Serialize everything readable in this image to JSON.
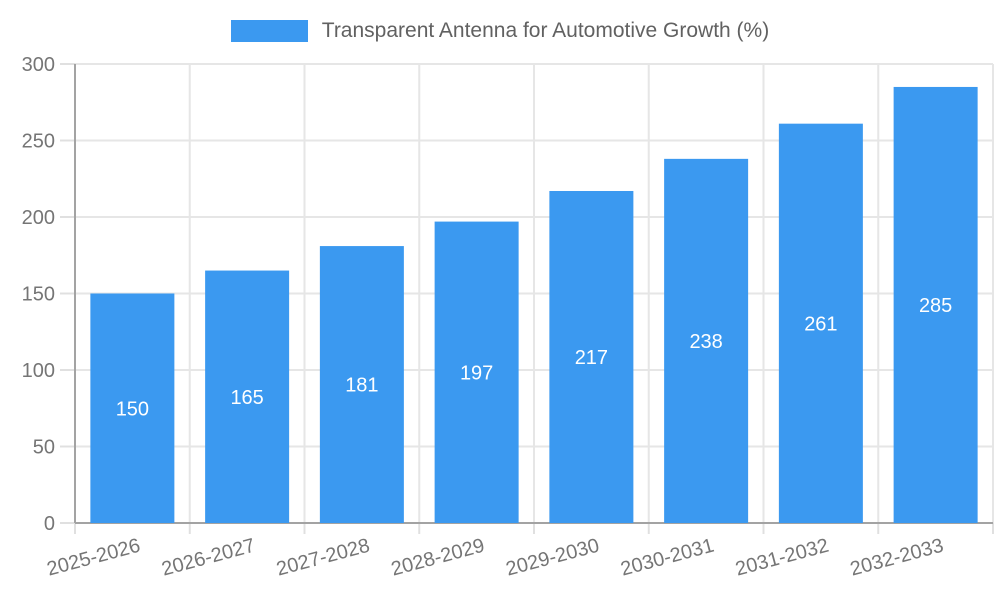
{
  "legend": {
    "label": "Transparent Antenna for Automotive Growth (%)",
    "swatch_color": "#3B99F0"
  },
  "chart_data": {
    "type": "bar",
    "title": "Transparent Antenna for Automotive Growth (%)",
    "categories": [
      "2025-2026",
      "2026-2027",
      "2027-2028",
      "2028-2029",
      "2029-2030",
      "2030-2031",
      "2031-2032",
      "2032-2033"
    ],
    "series": [
      {
        "name": "Transparent Antenna for Automotive Growth (%)",
        "values": [
          150,
          165,
          181,
          197,
          217,
          238,
          261,
          285
        ]
      }
    ],
    "value_labels": [
      "150",
      "165",
      "181",
      "197",
      "217",
      "238",
      "261",
      "285"
    ],
    "yticks": [
      0,
      50,
      100,
      150,
      200,
      250,
      300
    ],
    "ylim": [
      0,
      300
    ],
    "xlabel": "",
    "ylabel": "",
    "grid": true,
    "legend_position": "top",
    "x_label_rotation_deg": -15
  },
  "colors": {
    "bar_fill": "#3B99F0",
    "value_label_text": "#FFFFFF",
    "axis_line": "#A3A3A3",
    "grid_line": "#E6E6E6",
    "tick_mark": "#E0E0E0",
    "axis_text": "#757575",
    "legend_text": "#616161"
  }
}
